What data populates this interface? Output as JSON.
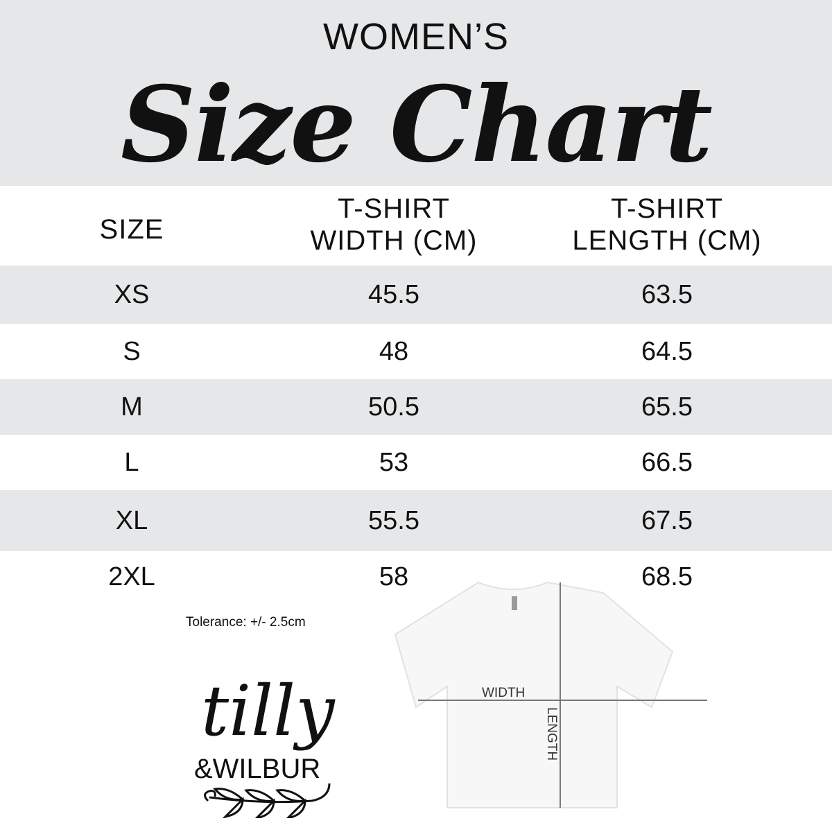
{
  "header": {
    "subtitle": "WOMEN’S",
    "title": "Size Chart"
  },
  "table": {
    "columns": [
      "SIZE",
      "T-SHIRT\nWIDTH (CM)",
      "T-SHIRT\nLENGTH (CM)"
    ],
    "column_lines": [
      [
        "SIZE"
      ],
      [
        "T-SHIRT",
        "WIDTH (CM)"
      ],
      [
        "T-SHIRT",
        "LENGTH (CM)"
      ]
    ],
    "rows": [
      {
        "size": "XS",
        "width": "45.5",
        "length": "63.5"
      },
      {
        "size": "S",
        "width": "48",
        "length": "64.5"
      },
      {
        "size": "M",
        "width": "50.5",
        "length": "65.5"
      },
      {
        "size": "L",
        "width": "53",
        "length": "66.5"
      },
      {
        "size": "XL",
        "width": "55.5",
        "length": "67.5"
      },
      {
        "size": "2XL",
        "width": "58",
        "length": "68.5"
      }
    ]
  },
  "tolerance": "Tolerance: +/- 2.5cm",
  "logo": {
    "line1": "tilly",
    "line2": "&WILBUR"
  },
  "diagram": {
    "width_label": "WIDTH",
    "length_label": "LENGTH"
  },
  "colors": {
    "band": "#e6e7e8",
    "text": "#111111"
  }
}
